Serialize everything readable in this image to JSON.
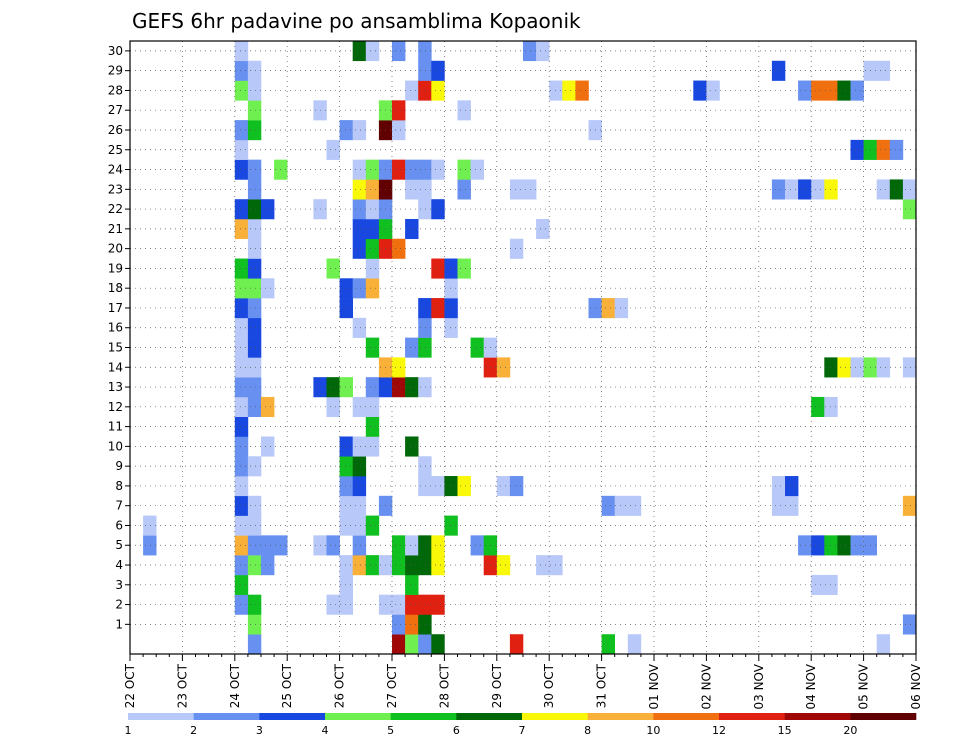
{
  "chart_data": {
    "type": "heatmap",
    "title": "GEFS 6hr padavine po ansamblima Kopaonik",
    "xlabel": "",
    "ylabel": "",
    "x_tick_labels": [
      "22 OCT",
      "23 OCT",
      "24 OCT",
      "25 OCT",
      "26 OCT",
      "27 OCT",
      "28 OCT",
      "29 OCT",
      "30 OCT",
      "31 OCT",
      "01 NOV",
      "02 NOV",
      "03 NOV",
      "04 NOV",
      "05 NOV",
      "06 NOV"
    ],
    "y_tick_labels": [
      "1",
      "2",
      "3",
      "4",
      "5",
      "6",
      "7",
      "8",
      "9",
      "10",
      "11",
      "12",
      "13",
      "14",
      "15",
      "16",
      "17",
      "18",
      "19",
      "20",
      "21",
      "22",
      "23",
      "24",
      "25",
      "26",
      "27",
      "28",
      "29",
      "30"
    ],
    "xlim": [
      0,
      60
    ],
    "ylim": [
      0,
      30
    ],
    "x_unit": "6-hour steps from 22 OCT 00Z",
    "y_unit": "ensemble member (0 = control)",
    "legend": {
      "position": "bottom",
      "levels": [
        "1",
        "2",
        "3",
        "4",
        "5",
        "6",
        "7",
        "8",
        "10",
        "12",
        "15",
        "20"
      ],
      "colors": [
        "#b8c8f8",
        "#6890f0",
        "#1848e0",
        "#70f050",
        "#10c020",
        "#006808",
        "#f8f808",
        "#f8b038",
        "#f07010",
        "#e02010",
        "#a00808",
        "#600000"
      ]
    },
    "cells": [
      [
        0,
        9,
        2
      ],
      [
        0,
        20,
        11
      ],
      [
        0,
        21,
        4
      ],
      [
        0,
        22,
        2
      ],
      [
        0,
        23,
        6
      ],
      [
        0,
        29,
        10
      ],
      [
        0,
        36,
        5
      ],
      [
        0,
        38,
        1
      ],
      [
        0,
        57,
        1
      ],
      [
        1,
        9,
        4
      ],
      [
        1,
        20,
        2
      ],
      [
        1,
        21,
        9
      ],
      [
        1,
        22,
        6
      ],
      [
        1,
        59,
        2
      ],
      [
        2,
        8,
        2
      ],
      [
        2,
        9,
        5
      ],
      [
        2,
        15,
        1
      ],
      [
        2,
        16,
        1
      ],
      [
        2,
        19,
        1
      ],
      [
        2,
        20,
        1
      ],
      [
        2,
        21,
        10
      ],
      [
        2,
        22,
        10
      ],
      [
        2,
        23,
        10
      ],
      [
        3,
        8,
        5
      ],
      [
        3,
        16,
        1
      ],
      [
        3,
        21,
        5
      ],
      [
        3,
        52,
        1
      ],
      [
        3,
        53,
        1
      ],
      [
        4,
        8,
        2
      ],
      [
        4,
        9,
        4
      ],
      [
        4,
        10,
        2
      ],
      [
        4,
        16,
        1
      ],
      [
        4,
        17,
        8
      ],
      [
        4,
        18,
        5
      ],
      [
        4,
        19,
        1
      ],
      [
        4,
        20,
        5
      ],
      [
        4,
        21,
        6
      ],
      [
        4,
        22,
        6
      ],
      [
        4,
        23,
        7
      ],
      [
        4,
        27,
        10
      ],
      [
        4,
        28,
        7
      ],
      [
        4,
        31,
        1
      ],
      [
        4,
        32,
        1
      ],
      [
        5,
        1,
        2
      ],
      [
        5,
        8,
        8
      ],
      [
        5,
        9,
        2
      ],
      [
        5,
        10,
        2
      ],
      [
        5,
        11,
        2
      ],
      [
        5,
        14,
        1
      ],
      [
        5,
        15,
        2
      ],
      [
        5,
        17,
        2
      ],
      [
        5,
        20,
        5
      ],
      [
        5,
        21,
        1
      ],
      [
        5,
        22,
        6
      ],
      [
        5,
        23,
        7
      ],
      [
        5,
        26,
        2
      ],
      [
        5,
        27,
        5
      ],
      [
        5,
        51,
        2
      ],
      [
        5,
        52,
        3
      ],
      [
        5,
        53,
        5
      ],
      [
        5,
        54,
        6
      ],
      [
        5,
        55,
        2
      ],
      [
        5,
        56,
        2
      ],
      [
        6,
        1,
        1
      ],
      [
        6,
        8,
        1
      ],
      [
        6,
        9,
        1
      ],
      [
        6,
        16,
        1
      ],
      [
        6,
        17,
        1
      ],
      [
        6,
        18,
        5
      ],
      [
        6,
        24,
        5
      ],
      [
        7,
        8,
        3
      ],
      [
        7,
        9,
        1
      ],
      [
        7,
        16,
        1
      ],
      [
        7,
        17,
        1
      ],
      [
        7,
        19,
        2
      ],
      [
        7,
        36,
        2
      ],
      [
        7,
        37,
        1
      ],
      [
        7,
        38,
        1
      ],
      [
        7,
        49,
        1
      ],
      [
        7,
        50,
        1
      ],
      [
        7,
        59,
        8
      ],
      [
        8,
        8,
        1
      ],
      [
        8,
        16,
        2
      ],
      [
        8,
        17,
        3
      ],
      [
        8,
        22,
        1
      ],
      [
        8,
        23,
        1
      ],
      [
        8,
        24,
        6
      ],
      [
        8,
        25,
        7
      ],
      [
        8,
        28,
        1
      ],
      [
        8,
        29,
        2
      ],
      [
        8,
        49,
        1
      ],
      [
        8,
        50,
        3
      ],
      [
        9,
        8,
        2
      ],
      [
        9,
        9,
        1
      ],
      [
        9,
        16,
        5
      ],
      [
        9,
        17,
        6
      ],
      [
        9,
        22,
        1
      ],
      [
        10,
        8,
        2
      ],
      [
        10,
        10,
        1
      ],
      [
        10,
        16,
        3
      ],
      [
        10,
        17,
        1
      ],
      [
        10,
        18,
        1
      ],
      [
        10,
        21,
        6
      ],
      [
        11,
        8,
        3
      ],
      [
        11,
        18,
        5
      ],
      [
        12,
        8,
        1
      ],
      [
        12,
        9,
        2
      ],
      [
        12,
        10,
        8
      ],
      [
        12,
        15,
        1
      ],
      [
        12,
        17,
        1
      ],
      [
        12,
        18,
        1
      ],
      [
        12,
        52,
        5
      ],
      [
        12,
        53,
        1
      ],
      [
        13,
        8,
        2
      ],
      [
        13,
        9,
        2
      ],
      [
        13,
        14,
        3
      ],
      [
        13,
        15,
        6
      ],
      [
        13,
        16,
        4
      ],
      [
        13,
        18,
        2
      ],
      [
        13,
        19,
        3
      ],
      [
        13,
        20,
        11
      ],
      [
        13,
        21,
        6
      ],
      [
        13,
        22,
        1
      ],
      [
        14,
        8,
        1
      ],
      [
        14,
        9,
        1
      ],
      [
        14,
        19,
        8
      ],
      [
        14,
        20,
        7
      ],
      [
        14,
        27,
        10
      ],
      [
        14,
        28,
        8
      ],
      [
        14,
        53,
        6
      ],
      [
        14,
        54,
        7
      ],
      [
        14,
        55,
        1
      ],
      [
        14,
        56,
        4
      ],
      [
        14,
        57,
        1
      ],
      [
        14,
        59,
        1
      ],
      [
        15,
        8,
        1
      ],
      [
        15,
        9,
        3
      ],
      [
        15,
        18,
        5
      ],
      [
        15,
        21,
        2
      ],
      [
        15,
        22,
        5
      ],
      [
        15,
        26,
        5
      ],
      [
        15,
        27,
        1
      ],
      [
        16,
        8,
        1
      ],
      [
        16,
        9,
        3
      ],
      [
        16,
        17,
        1
      ],
      [
        16,
        22,
        2
      ],
      [
        16,
        24,
        1
      ],
      [
        17,
        8,
        3
      ],
      [
        17,
        9,
        2
      ],
      [
        17,
        16,
        3
      ],
      [
        17,
        22,
        3
      ],
      [
        17,
        23,
        10
      ],
      [
        17,
        24,
        3
      ],
      [
        17,
        35,
        2
      ],
      [
        17,
        36,
        8
      ],
      [
        17,
        37,
        1
      ],
      [
        18,
        8,
        4
      ],
      [
        18,
        9,
        4
      ],
      [
        18,
        10,
        1
      ],
      [
        18,
        16,
        3
      ],
      [
        18,
        17,
        2
      ],
      [
        18,
        18,
        8
      ],
      [
        18,
        24,
        1
      ],
      [
        19,
        8,
        5
      ],
      [
        19,
        9,
        3
      ],
      [
        19,
        15,
        4
      ],
      [
        19,
        18,
        1
      ],
      [
        19,
        23,
        10
      ],
      [
        19,
        24,
        3
      ],
      [
        19,
        25,
        4
      ],
      [
        20,
        9,
        1
      ],
      [
        20,
        17,
        3
      ],
      [
        20,
        18,
        5
      ],
      [
        20,
        19,
        10
      ],
      [
        20,
        20,
        9
      ],
      [
        20,
        29,
        1
      ],
      [
        21,
        8,
        8
      ],
      [
        21,
        9,
        1
      ],
      [
        21,
        17,
        3
      ],
      [
        21,
        18,
        3
      ],
      [
        21,
        19,
        5
      ],
      [
        21,
        21,
        3
      ],
      [
        21,
        31,
        1
      ],
      [
        22,
        8,
        3
      ],
      [
        22,
        9,
        6
      ],
      [
        22,
        10,
        3
      ],
      [
        22,
        14,
        1
      ],
      [
        22,
        17,
        2
      ],
      [
        22,
        18,
        1
      ],
      [
        22,
        19,
        2
      ],
      [
        22,
        22,
        1
      ],
      [
        22,
        23,
        3
      ],
      [
        22,
        59,
        4
      ],
      [
        23,
        9,
        2
      ],
      [
        23,
        17,
        7
      ],
      [
        23,
        18,
        8
      ],
      [
        23,
        19,
        12
      ],
      [
        23,
        21,
        1
      ],
      [
        23,
        22,
        1
      ],
      [
        23,
        25,
        2
      ],
      [
        23,
        29,
        1
      ],
      [
        23,
        30,
        1
      ],
      [
        23,
        49,
        2
      ],
      [
        23,
        50,
        1
      ],
      [
        23,
        51,
        3
      ],
      [
        23,
        52,
        1
      ],
      [
        23,
        53,
        7
      ],
      [
        23,
        57,
        1
      ],
      [
        23,
        58,
        6
      ],
      [
        23,
        59,
        1
      ],
      [
        24,
        8,
        3
      ],
      [
        24,
        9,
        2
      ],
      [
        24,
        11,
        4
      ],
      [
        24,
        17,
        1
      ],
      [
        24,
        18,
        4
      ],
      [
        24,
        19,
        2
      ],
      [
        24,
        20,
        10
      ],
      [
        24,
        21,
        2
      ],
      [
        24,
        22,
        2
      ],
      [
        24,
        23,
        1
      ],
      [
        24,
        25,
        4
      ],
      [
        24,
        26,
        1
      ],
      [
        25,
        8,
        1
      ],
      [
        25,
        15,
        1
      ],
      [
        25,
        55,
        3
      ],
      [
        25,
        56,
        5
      ],
      [
        25,
        57,
        9
      ],
      [
        25,
        58,
        2
      ],
      [
        26,
        8,
        2
      ],
      [
        26,
        9,
        5
      ],
      [
        26,
        16,
        2
      ],
      [
        26,
        17,
        1
      ],
      [
        26,
        19,
        12
      ],
      [
        26,
        20,
        1
      ],
      [
        26,
        35,
        1
      ],
      [
        27,
        9,
        4
      ],
      [
        27,
        14,
        1
      ],
      [
        27,
        19,
        4
      ],
      [
        27,
        20,
        10
      ],
      [
        27,
        25,
        1
      ],
      [
        28,
        8,
        4
      ],
      [
        28,
        9,
        1
      ],
      [
        28,
        21,
        1
      ],
      [
        28,
        22,
        10
      ],
      [
        28,
        23,
        7
      ],
      [
        28,
        32,
        1
      ],
      [
        28,
        33,
        7
      ],
      [
        28,
        34,
        9
      ],
      [
        28,
        43,
        3
      ],
      [
        28,
        44,
        1
      ],
      [
        28,
        51,
        2
      ],
      [
        28,
        52,
        9
      ],
      [
        28,
        53,
        9
      ],
      [
        28,
        54,
        6
      ],
      [
        28,
        55,
        2
      ],
      [
        29,
        8,
        2
      ],
      [
        29,
        9,
        1
      ],
      [
        29,
        22,
        2
      ],
      [
        29,
        23,
        3
      ],
      [
        29,
        49,
        3
      ],
      [
        29,
        56,
        1
      ],
      [
        29,
        57,
        1
      ],
      [
        30,
        8,
        1
      ],
      [
        30,
        17,
        6
      ],
      [
        30,
        18,
        1
      ],
      [
        30,
        20,
        2
      ],
      [
        30,
        22,
        2
      ],
      [
        30,
        30,
        2
      ],
      [
        30,
        31,
        1
      ]
    ]
  }
}
